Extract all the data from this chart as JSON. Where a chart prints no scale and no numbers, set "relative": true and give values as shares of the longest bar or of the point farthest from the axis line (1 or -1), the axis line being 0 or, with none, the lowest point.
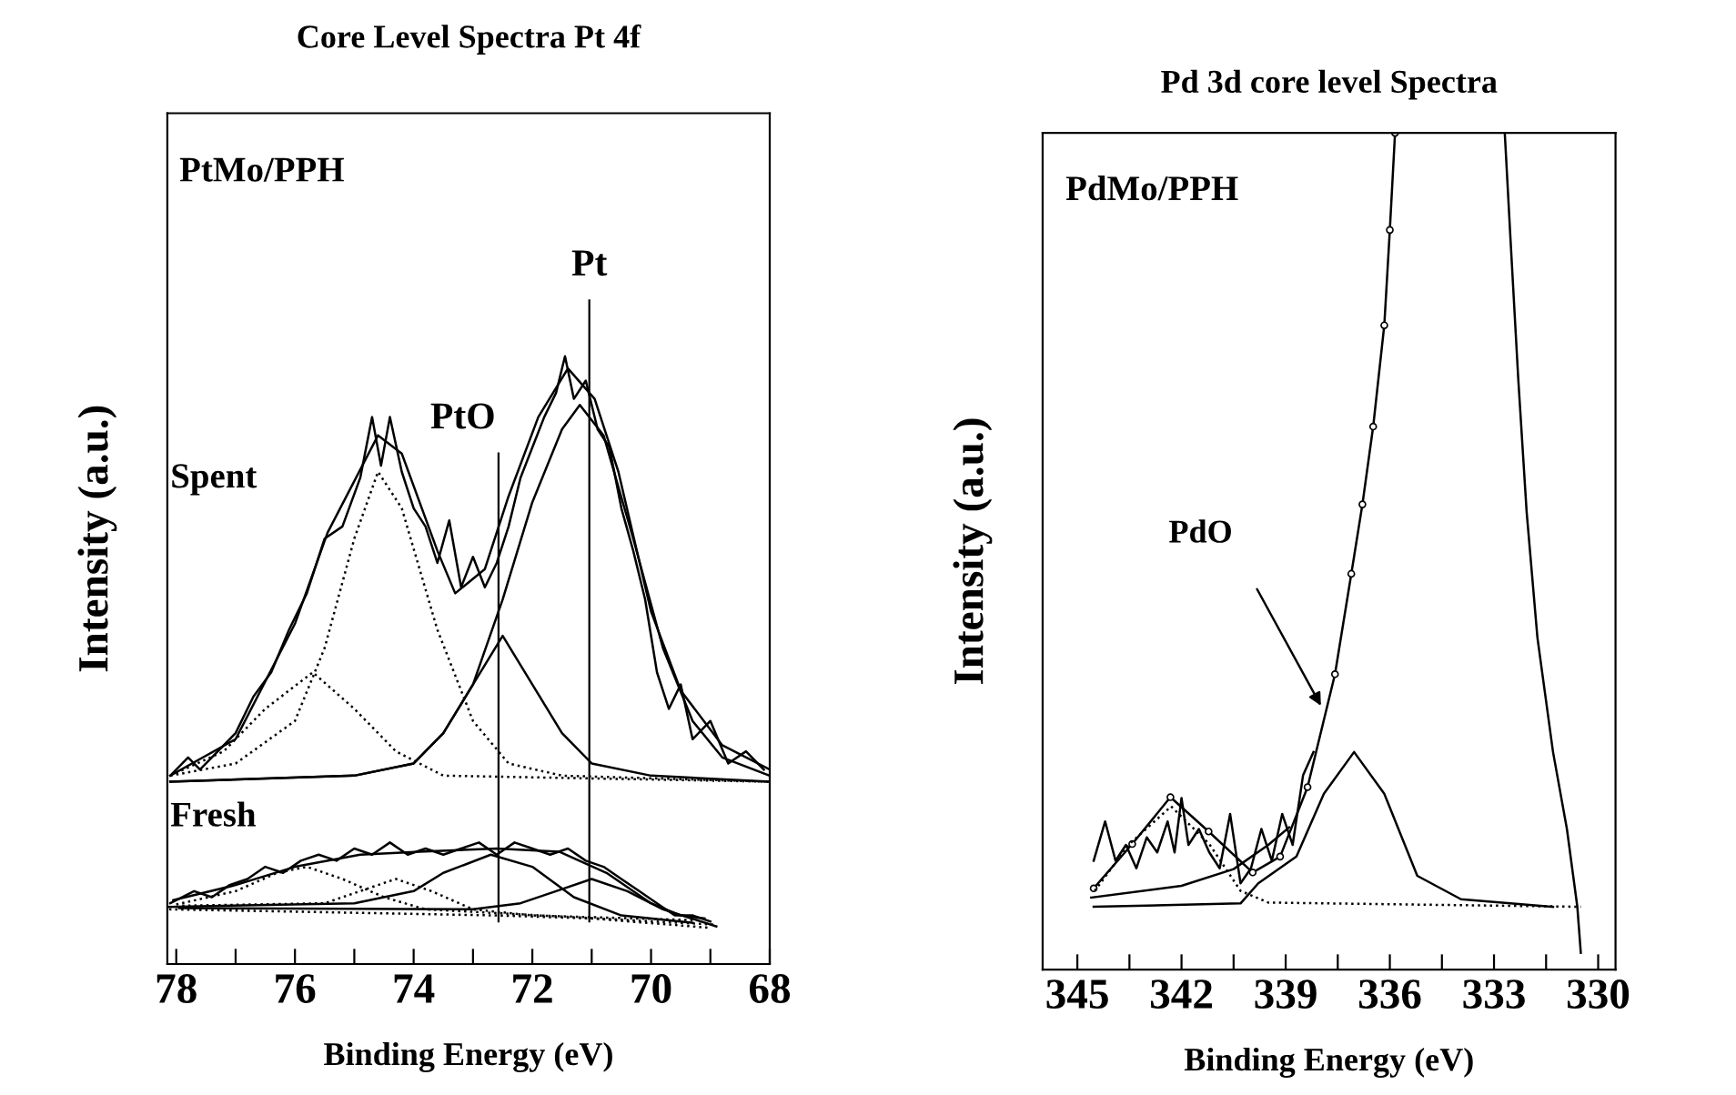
{
  "chart_data": [
    {
      "type": "line",
      "title": "Core Level Spectra Pt 4f",
      "xlabel": "Binding Energy (eV)",
      "ylabel": "Intensity (a.u.)",
      "relative": true,
      "xlim": [
        78.15,
        68
      ],
      "xticks": [
        78,
        {
          "value": 77,
          "label": null
        },
        76,
        {
          "value": 75,
          "label": null
        },
        74,
        {
          "value": 73,
          "label": null
        },
        72,
        {
          "value": 71,
          "label": null
        },
        70,
        {
          "value": 69,
          "label": null
        },
        68
      ],
      "annotations": [
        "PtMo/PPH",
        "Spent",
        "Fresh"
      ],
      "ref_lines": [
        {
          "axis": "x",
          "value": 72.57,
          "label": "PtO"
        },
        {
          "axis": "x",
          "value": 71.04,
          "label": "Pt"
        }
      ],
      "series": [
        {
          "color": "#000000",
          "line_style": "solid",
          "x": [
            78.1,
            77.8,
            77.6,
            77.3,
            77.0,
            76.7,
            76.4,
            76.1,
            75.8,
            75.5,
            75.2,
            74.9,
            74.7,
            74.55,
            74.4,
            74.2,
            74.0,
            73.8,
            73.6,
            73.4,
            73.2,
            73.0,
            72.8,
            72.6,
            72.4,
            72.2,
            72.0,
            71.8,
            71.6,
            71.45,
            71.3,
            71.1,
            70.9,
            70.7,
            70.5,
            70.3,
            70.1,
            69.9,
            69.7,
            69.5,
            69.3,
            69.0,
            68.7,
            68.4,
            68.1
          ],
          "values": [
            0.31,
            0.34,
            0.32,
            0.35,
            0.38,
            0.44,
            0.48,
            0.55,
            0.61,
            0.7,
            0.72,
            0.8,
            0.9,
            0.82,
            0.9,
            0.81,
            0.75,
            0.72,
            0.66,
            0.73,
            0.62,
            0.67,
            0.62,
            0.66,
            0.72,
            0.8,
            0.85,
            0.9,
            0.94,
            1.0,
            0.93,
            0.96,
            0.88,
            0.85,
            0.75,
            0.68,
            0.6,
            0.48,
            0.42,
            0.46,
            0.37,
            0.4,
            0.33,
            0.35,
            0.32
          ]
        },
        {
          "color": "#000000",
          "line_style": "solid",
          "x": [
            78.1,
            77.0,
            76.0,
            75.45,
            74.6,
            74.2,
            73.6,
            73.3,
            72.8,
            72.4,
            71.9,
            71.4,
            70.95,
            70.55,
            70.0,
            69.5,
            68.8,
            68.0
          ],
          "values": [
            0.31,
            0.37,
            0.56,
            0.71,
            0.87,
            0.84,
            0.68,
            0.61,
            0.65,
            0.77,
            0.9,
            0.98,
            0.93,
            0.81,
            0.58,
            0.45,
            0.36,
            0.32
          ]
        },
        {
          "color": "#000000",
          "line_style": "dotted",
          "x": [
            78.1,
            77.0,
            76.0,
            75.5,
            75.0,
            74.6,
            74.2,
            73.6,
            73.0,
            72.4,
            71.5,
            68.0
          ],
          "values": [
            0.31,
            0.33,
            0.4,
            0.52,
            0.7,
            0.81,
            0.75,
            0.55,
            0.4,
            0.33,
            0.31,
            0.3
          ]
        },
        {
          "color": "#000000",
          "line_style": "dotted",
          "x": [
            78.1,
            77.2,
            76.5,
            75.7,
            75.0,
            74.3,
            73.5,
            68.0
          ],
          "values": [
            0.31,
            0.35,
            0.42,
            0.48,
            0.42,
            0.35,
            0.31,
            0.3
          ]
        },
        {
          "color": "#000000",
          "line_style": "solid",
          "x": [
            78.1,
            75.0,
            74.0,
            73.5,
            73.0,
            72.5,
            72.0,
            71.5,
            71.0,
            70.0,
            68.0
          ],
          "values": [
            0.3,
            0.31,
            0.33,
            0.38,
            0.46,
            0.54,
            0.46,
            0.38,
            0.33,
            0.31,
            0.3
          ]
        },
        {
          "color": "#000000",
          "line_style": "solid",
          "x": [
            78.1,
            75.0,
            74.0,
            73.5,
            73.0,
            72.5,
            72.0,
            71.5,
            71.2,
            70.8,
            70.3,
            69.8,
            69.3,
            68.8,
            68.0
          ],
          "values": [
            0.3,
            0.31,
            0.33,
            0.38,
            0.46,
            0.6,
            0.76,
            0.88,
            0.92,
            0.87,
            0.7,
            0.52,
            0.4,
            0.34,
            0.31
          ]
        },
        {
          "color": "#000000",
          "line_style": "solid",
          "x": [
            78.1,
            77.7,
            77.4,
            77.1,
            76.8,
            76.5,
            76.2,
            75.9,
            75.6,
            75.3,
            75.0,
            74.7,
            74.4,
            74.1,
            73.8,
            73.5,
            73.2,
            72.9,
            72.6,
            72.3,
            72.0,
            71.7,
            71.4,
            71.1,
            70.8,
            70.5,
            70.2,
            69.9,
            69.6,
            69.3,
            69.0
          ],
          "values": [
            0.1,
            0.12,
            0.11,
            0.13,
            0.14,
            0.16,
            0.15,
            0.17,
            0.18,
            0.17,
            0.19,
            0.18,
            0.2,
            0.18,
            0.19,
            0.18,
            0.19,
            0.2,
            0.18,
            0.2,
            0.19,
            0.18,
            0.19,
            0.17,
            0.16,
            0.14,
            0.12,
            0.1,
            0.08,
            0.08,
            0.07
          ]
        },
        {
          "color": "#000000",
          "line_style": "solid",
          "x": [
            78.05,
            77.0,
            76.0,
            74.9,
            73.9,
            72.6,
            71.55,
            70.75,
            70.0,
            69.5,
            69.1
          ],
          "values": [
            0.105,
            0.13,
            0.16,
            0.18,
            0.185,
            0.19,
            0.185,
            0.15,
            0.1,
            0.08,
            0.075
          ]
        },
        {
          "color": "#000000",
          "line_style": "dotted",
          "x": [
            78.0,
            77.0,
            76.3,
            75.8,
            75.2,
            74.5,
            73.8,
            68.95
          ],
          "values": [
            0.098,
            0.12,
            0.15,
            0.16,
            0.14,
            0.11,
            0.09,
            0.065
          ]
        },
        {
          "color": "#000000",
          "line_style": "dotted",
          "x": [
            77.9,
            75.5,
            74.9,
            74.3,
            73.7,
            73.0,
            72.0,
            69.2
          ],
          "values": [
            0.096,
            0.1,
            0.12,
            0.14,
            0.12,
            0.09,
            0.08,
            0.072
          ]
        },
        {
          "color": "#000000",
          "line_style": "solid",
          "x": [
            78.15,
            75.0,
            74.0,
            73.5,
            72.7,
            72.0,
            71.3,
            70.5,
            69.3
          ],
          "values": [
            0.094,
            0.1,
            0.12,
            0.15,
            0.18,
            0.16,
            0.11,
            0.08,
            0.068
          ]
        },
        {
          "color": "#000000",
          "line_style": "solid",
          "x": [
            77.95,
            73.0,
            72.2,
            71.6,
            71.0,
            70.4,
            69.8,
            68.9
          ],
          "values": [
            0.092,
            0.09,
            0.1,
            0.12,
            0.14,
            0.12,
            0.09,
            0.062
          ]
        },
        {
          "color": "#000000",
          "line_style": "dotted",
          "x": [
            78.12,
            72.6,
            71.0,
            69.05
          ],
          "values": [
            0.09,
            0.08,
            0.075,
            0.06
          ]
        }
      ]
    },
    {
      "type": "line",
      "title": "Pd 3d core level Spectra",
      "xlabel": "Binding Energy (eV)",
      "ylabel": "Intensity (a.u.)",
      "relative": true,
      "xlim": [
        346,
        329.5
      ],
      "xticks": [
        345,
        {
          "value": 343.5,
          "label": null
        },
        342,
        {
          "value": 340.5,
          "label": null
        },
        339,
        {
          "value": 337.5,
          "label": null
        },
        336,
        {
          "value": 334.5,
          "label": null
        },
        333,
        {
          "value": 331.5,
          "label": null
        },
        330
      ],
      "annotations": [
        "PdMo/PPH",
        "PdO"
      ],
      "series": [
        {
          "color": "#000000",
          "line_style": "solid",
          "marker": "circle",
          "x": [
            344.53,
            343.42,
            342.32,
            341.22,
            339.95,
            339.16,
            338.37,
            337.58,
            337.11,
            336.79,
            336.48,
            336.16,
            336.0,
            335.85
          ],
          "values": [
            0.097,
            0.15,
            0.206,
            0.165,
            0.116,
            0.135,
            0.218,
            0.353,
            0.473,
            0.556,
            0.649,
            0.77,
            0.884,
            1.0
          ]
        },
        {
          "color": "#000000",
          "line_style": "solid",
          "x": [
            332.69,
            332.53,
            332.3,
            332.06,
            331.75,
            331.3,
            330.9,
            330.6,
            330.5
          ],
          "values": [
            1.0,
            0.877,
            0.705,
            0.547,
            0.397,
            0.26,
            0.168,
            0.075,
            0.02
          ]
        },
        {
          "color": "#000000",
          "line_style": "solid",
          "x": [
            344.53,
            344.2,
            343.9,
            343.6,
            343.3,
            343.0,
            342.7,
            342.4,
            342.2,
            342.0,
            341.8,
            341.5,
            341.2,
            340.9,
            340.6,
            340.3,
            340.0,
            339.7,
            339.4,
            339.1,
            338.8,
            338.5,
            338.2
          ],
          "values": [
            0.13,
            0.177,
            0.13,
            0.149,
            0.121,
            0.158,
            0.14,
            0.177,
            0.14,
            0.205,
            0.149,
            0.168,
            0.14,
            0.121,
            0.186,
            0.103,
            0.121,
            0.168,
            0.13,
            0.186,
            0.149,
            0.232,
            0.26
          ]
        },
        {
          "color": "#000000",
          "line_style": "solid",
          "x": [
            344.53,
            340.3,
            339.79,
            338.69,
            337.9,
            337.03,
            336.16,
            335.21,
            333.95,
            331.3
          ],
          "values": [
            0.075,
            0.079,
            0.103,
            0.135,
            0.21,
            0.26,
            0.21,
            0.112,
            0.084,
            0.075
          ]
        },
        {
          "color": "#000000",
          "line_style": "dotted",
          "x": [
            344.5,
            343.5,
            342.3,
            341.2,
            340.3,
            339.5,
            330.5
          ],
          "values": [
            0.094,
            0.15,
            0.195,
            0.15,
            0.094,
            0.08,
            0.075
          ]
        },
        {
          "color": "#000000",
          "line_style": "solid",
          "x": [
            344.6,
            342.0,
            340.5,
            339.5,
            338.9
          ],
          "values": [
            0.086,
            0.1,
            0.12,
            0.149,
            0.17
          ]
        }
      ]
    }
  ]
}
